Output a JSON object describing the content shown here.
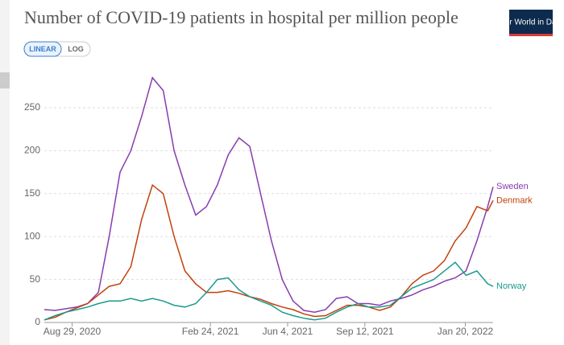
{
  "ui": {
    "logo": "Our World in Data",
    "buttons": [
      "LINEAR",
      "LOG"
    ]
  },
  "chart_data": {
    "type": "line",
    "title": "Number of COVID-19 patients in hospital per million people",
    "x": [
      "2020-07-24",
      "2020-08-07",
      "2020-08-21",
      "2020-09-04",
      "2020-09-18",
      "2020-10-02",
      "2020-10-16",
      "2020-10-30",
      "2020-11-13",
      "2020-11-27",
      "2020-12-11",
      "2020-12-25",
      "2021-01-08",
      "2021-01-22",
      "2021-02-05",
      "2021-02-19",
      "2021-03-05",
      "2021-03-19",
      "2021-04-02",
      "2021-04-16",
      "2021-04-30",
      "2021-05-14",
      "2021-05-28",
      "2021-06-11",
      "2021-06-25",
      "2021-07-09",
      "2021-07-23",
      "2021-08-06",
      "2021-08-20",
      "2021-09-03",
      "2021-09-17",
      "2021-10-01",
      "2021-10-15",
      "2021-10-29",
      "2021-11-12",
      "2021-11-26",
      "2021-12-10",
      "2021-12-24",
      "2022-01-07",
      "2022-01-21",
      "2022-02-04",
      "2022-02-18",
      "2022-02-25"
    ],
    "series": [
      {
        "name": "Sweden",
        "color": "#883cae",
        "values": [
          15,
          14,
          16,
          18,
          22,
          35,
          100,
          175,
          200,
          240,
          285,
          270,
          200,
          160,
          125,
          135,
          160,
          195,
          215,
          205,
          150,
          95,
          50,
          25,
          14,
          12,
          15,
          28,
          30,
          22,
          22,
          20,
          25,
          28,
          32,
          38,
          42,
          48,
          52,
          60,
          95,
          135,
          158
        ]
      },
      {
        "name": "Denmark",
        "color": "#c2410c",
        "values": [
          3,
          6,
          12,
          17,
          22,
          32,
          42,
          45,
          65,
          120,
          160,
          150,
          100,
          60,
          45,
          35,
          35,
          37,
          34,
          30,
          27,
          22,
          18,
          15,
          10,
          7,
          8,
          14,
          20,
          20,
          18,
          14,
          18,
          30,
          45,
          55,
          60,
          72,
          95,
          110,
          135,
          130,
          142
        ]
      },
      {
        "name": "Norway",
        "color": "#1a9a8c",
        "values": [
          3,
          8,
          12,
          15,
          18,
          22,
          25,
          25,
          28,
          25,
          28,
          25,
          20,
          18,
          22,
          35,
          50,
          52,
          38,
          30,
          25,
          20,
          12,
          8,
          5,
          3,
          5,
          12,
          18,
          22,
          18,
          18,
          20,
          30,
          40,
          45,
          50,
          60,
          70,
          55,
          60,
          45,
          42
        ]
      }
    ],
    "xlim": [
      "2020-07-24",
      "2022-02-25"
    ],
    "xticks": [
      {
        "value": "2020-08-29",
        "label": "Aug 29, 2020"
      },
      {
        "value": "2021-02-24",
        "label": "Feb 24, 2021"
      },
      {
        "value": "2021-06-04",
        "label": "Jun 4, 2021"
      },
      {
        "value": "2021-09-12",
        "label": "Sep 12, 2021"
      },
      {
        "value": "2022-01-20",
        "label": "Jan 20, 2022"
      }
    ],
    "ylim": [
      0,
      300
    ],
    "yticks": [
      0,
      50,
      100,
      150,
      200,
      250
    ],
    "grid": true
  }
}
